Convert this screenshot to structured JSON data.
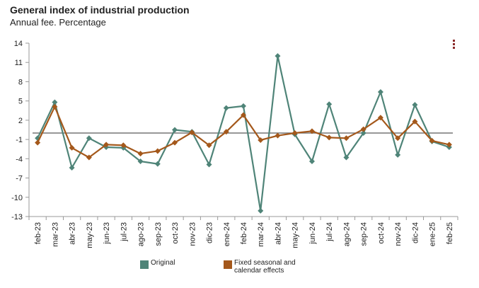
{
  "header": {
    "title": "General index of industrial production",
    "subtitle": "Annual fee. Percentage"
  },
  "colors": {
    "original": "#4f8478",
    "adjusted": "#a4581b",
    "zero_line": "#777777",
    "menu": "#8b2a2a"
  },
  "icons": {
    "menu": "more-vertical-icon"
  },
  "chart_data": {
    "type": "line",
    "title": "General index of industrial production",
    "subtitle": "Annual fee. Percentage",
    "xlabel": "",
    "ylabel": "",
    "ylim": [
      -13,
      14
    ],
    "yticks": [
      14,
      11,
      8,
      5,
      2,
      -1,
      -4,
      -7,
      -10,
      -13
    ],
    "reference_line": 0,
    "categories": [
      "feb-23",
      "mar-23",
      "abr-23",
      "may-23",
      "jun-23",
      "jul-23",
      "ago-23",
      "sep-23",
      "oct-23",
      "nov-23",
      "dic-23",
      "ene-24",
      "feb-24",
      "mar-24",
      "abr-24",
      "may-24",
      "jun-24",
      "jul-24",
      "ago-24",
      "sep-24",
      "oct-24",
      "nov-24",
      "dic-24",
      "ene-25",
      "feb-25"
    ],
    "series": [
      {
        "name": "Original",
        "color": "#4f8478",
        "marker": "diamond",
        "values": [
          -0.8,
          4.8,
          -5.4,
          -0.8,
          -2.2,
          -2.3,
          -4.4,
          -4.8,
          0.5,
          0.2,
          -4.9,
          3.9,
          4.2,
          -12.1,
          12.0,
          -0.2,
          -4.4,
          4.5,
          -3.8,
          0.0,
          6.4,
          -3.4,
          4.4,
          -1.3,
          -2.2
        ]
      },
      {
        "name": "Fixed seasonal and calendar effects",
        "color": "#a4581b",
        "marker": "diamond",
        "values": [
          -1.5,
          4.1,
          -2.3,
          -3.8,
          -1.8,
          -1.9,
          -3.2,
          -2.8,
          -1.5,
          0.1,
          -1.9,
          0.2,
          2.8,
          -1.1,
          -0.4,
          0.0,
          0.3,
          -0.7,
          -0.8,
          0.6,
          2.4,
          -0.8,
          1.8,
          -1.2,
          -1.8
        ]
      }
    ]
  }
}
